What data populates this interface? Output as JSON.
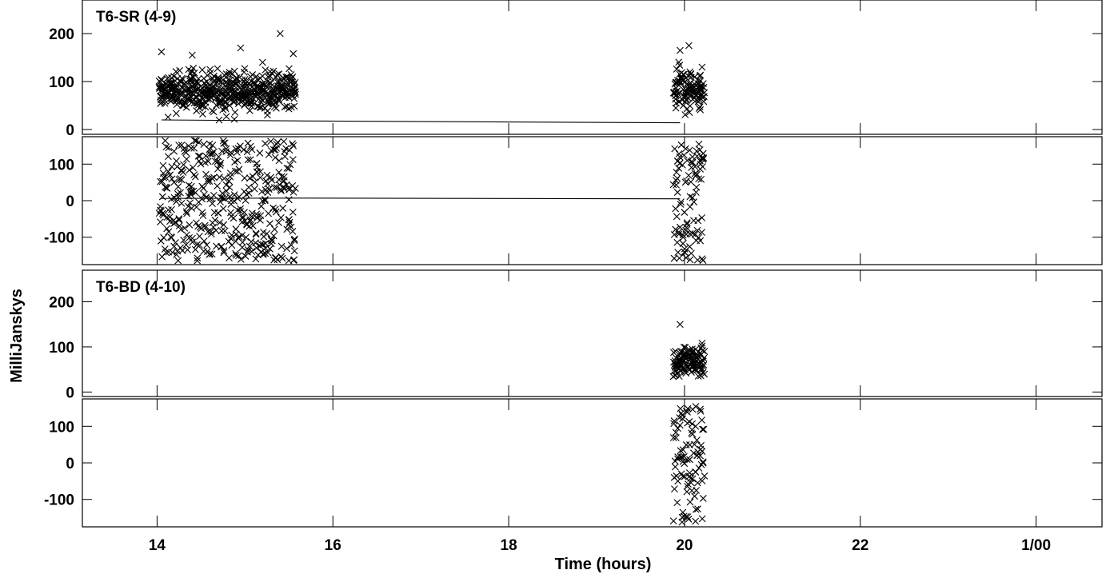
{
  "chart_data": {
    "type": "scatter",
    "ylabel": "MilliJanskys",
    "xlabel": "Time (hours)",
    "x_ticks": [
      {
        "value": 14,
        "label": "14"
      },
      {
        "value": 16,
        "label": "16"
      },
      {
        "value": 18,
        "label": "18"
      },
      {
        "value": 20,
        "label": "20"
      },
      {
        "value": 22,
        "label": "22"
      },
      {
        "value": 24,
        "label": "1/00"
      }
    ],
    "xlim": [
      13.15,
      24.75
    ],
    "panels": [
      {
        "title": "T6-SR (4-9)",
        "upper": {
          "ylim": [
            -10,
            270
          ],
          "yticks": [
            0,
            100,
            200
          ],
          "model_line": [
            [
              14.05,
              20
            ],
            [
              15.55,
              18
            ],
            [
              19.95,
              14
            ]
          ],
          "outliers": [
            [
              14.05,
              162
            ],
            [
              14.4,
              155
            ],
            [
              14.95,
              170
            ],
            [
              15.2,
              140
            ],
            [
              15.4,
              200
            ],
            [
              15.55,
              158
            ],
            [
              19.95,
              165
            ],
            [
              20.05,
              175
            ],
            [
              20.2,
              130
            ]
          ]
        },
        "lower": {
          "ylim": [
            -175,
            175
          ],
          "yticks": [
            -100,
            0,
            100
          ],
          "model_line": [
            [
              14.05,
              6
            ],
            [
              15.55,
              7
            ],
            [
              19.95,
              5
            ]
          ]
        },
        "scans": [
          {
            "start": 14.05,
            "end": 15.55,
            "upper_range": [
              10,
              150
            ],
            "lower_range": [
              -165,
              165
            ]
          },
          {
            "start": 19.9,
            "end": 20.2,
            "upper_range": [
              10,
              160
            ],
            "lower_range": [
              -165,
              155
            ]
          }
        ]
      },
      {
        "title": "T6-BD (4-10)",
        "upper": {
          "ylim": [
            -10,
            270
          ],
          "yticks": [
            0,
            100,
            200
          ],
          "model_line": [
            [
              19.95,
              0
            ]
          ],
          "outliers": [
            [
              19.95,
              150
            ],
            [
              20.2,
              108
            ]
          ]
        },
        "lower": {
          "ylim": [
            -175,
            175
          ],
          "yticks": [
            -100,
            0,
            100
          ],
          "model_line": [
            [
              19.95,
              0
            ]
          ]
        },
        "scans": [
          {
            "start": 19.9,
            "end": 20.2,
            "upper_range": [
              15,
              120
            ],
            "lower_range": [
              -165,
              160
            ]
          }
        ]
      }
    ]
  }
}
